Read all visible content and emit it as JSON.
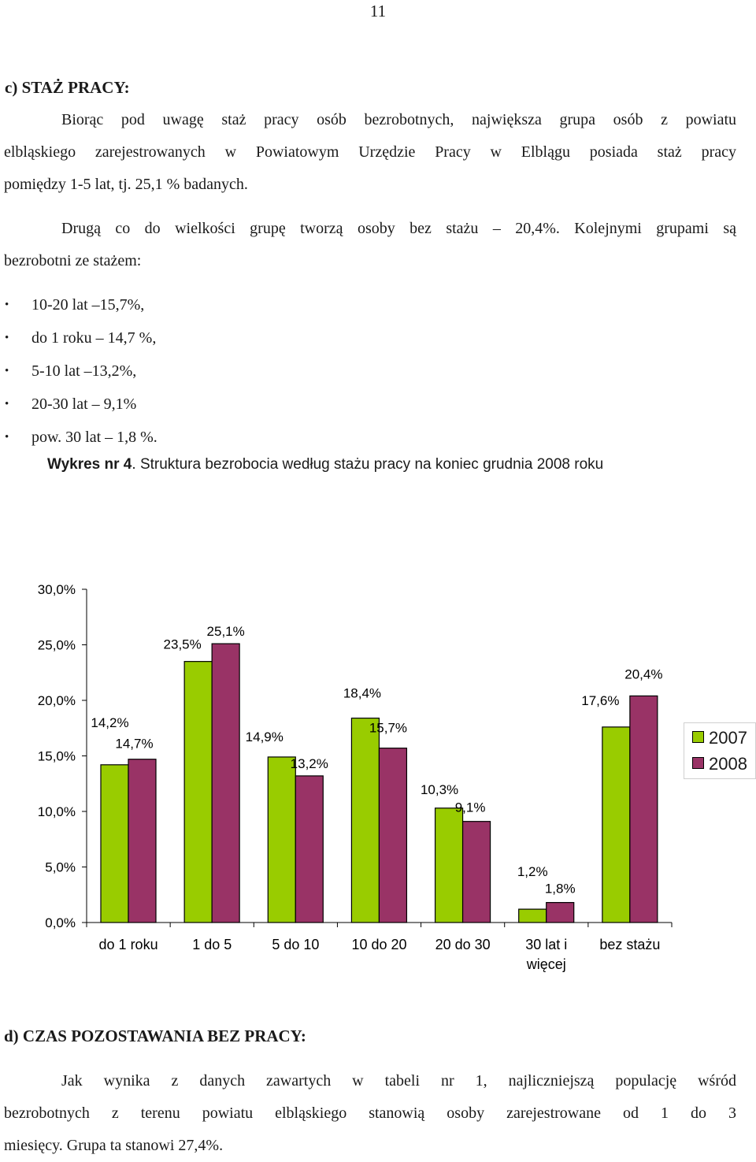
{
  "page_number": "11",
  "section_c": {
    "heading": "c) STAŻ  PRACY:",
    "para1_lines": [
      "Biorąc pod uwagę staż pracy osób bezrobotnych, największa grupa osób z powiatu",
      "elbląskiego zarejestrowanych w Powiatowym Urzędzie Pracy w Elblągu posiada staż pracy",
      "pomiędzy 1-5 lat, tj. 25,1 % badanych."
    ],
    "para2_lines": [
      "Drugą co do wielkości grupę tworzą osoby bez stażu  – 20,4%. Kolejnymi grupami są",
      "bezrobotni ze stażem:"
    ],
    "bullets": [
      "10-20 lat –15,7%,",
      "do 1 roku – 14,7 %,",
      "5-10 lat  –13,2%,",
      "20-30 lat  – 9,1%",
      "pow. 30 lat – 1,8 %."
    ]
  },
  "caption": {
    "label": "Wykres nr 4",
    "text": ". Struktura bezrobocia według stażu pracy na koniec grudnia 2008 roku"
  },
  "chart_data": {
    "type": "bar",
    "categories": [
      "do 1 roku",
      "1 do 5",
      "5 do 10",
      "10 do 20",
      "20 do 30",
      "30 lat i więcej",
      "bez stażu"
    ],
    "category_lines": [
      [
        "do 1 roku"
      ],
      [
        "1 do 5"
      ],
      [
        "5 do 10"
      ],
      [
        "10 do 20"
      ],
      [
        "20 do 30"
      ],
      [
        "30 lat i",
        "więcej"
      ],
      [
        "bez stażu"
      ]
    ],
    "series": [
      {
        "name": "2007",
        "values": [
          14.2,
          23.5,
          14.9,
          18.4,
          10.3,
          1.2,
          17.6
        ],
        "labels": [
          "14,2%",
          "23,5%",
          "14,9%",
          "18,4%",
          "10,3%",
          "1,2%",
          "17,6%"
        ],
        "color": "#99cc00"
      },
      {
        "name": "2008",
        "values": [
          14.7,
          25.1,
          13.2,
          15.7,
          9.1,
          1.8,
          20.4
        ],
        "labels": [
          "14,7%",
          "25,1%",
          "13,2%",
          "15,7%",
          "9,1%",
          "1,8%",
          "20,4%"
        ],
        "color": "#993366"
      }
    ],
    "y_ticks": [
      0,
      5,
      10,
      15,
      20,
      25,
      30
    ],
    "y_tick_labels": [
      "0,0%",
      "5,0%",
      "10,0%",
      "15,0%",
      "20,0%",
      "25,0%",
      "30,0%"
    ],
    "ylim": [
      0,
      30
    ],
    "grid": false,
    "legend": "right"
  },
  "section_d": {
    "heading": "d) CZAS POZOSTAWANIA BEZ PRACY:",
    "para_lines": [
      "Jak wynika z danych zawartych w tabeli nr 1, najliczniejszą populację wśród",
      "bezrobotnych z terenu powiatu elbląskiego stanowią osoby zarejestrowane od 1 do 3",
      "miesięcy. Grupa ta stanowi 27,4%."
    ]
  }
}
